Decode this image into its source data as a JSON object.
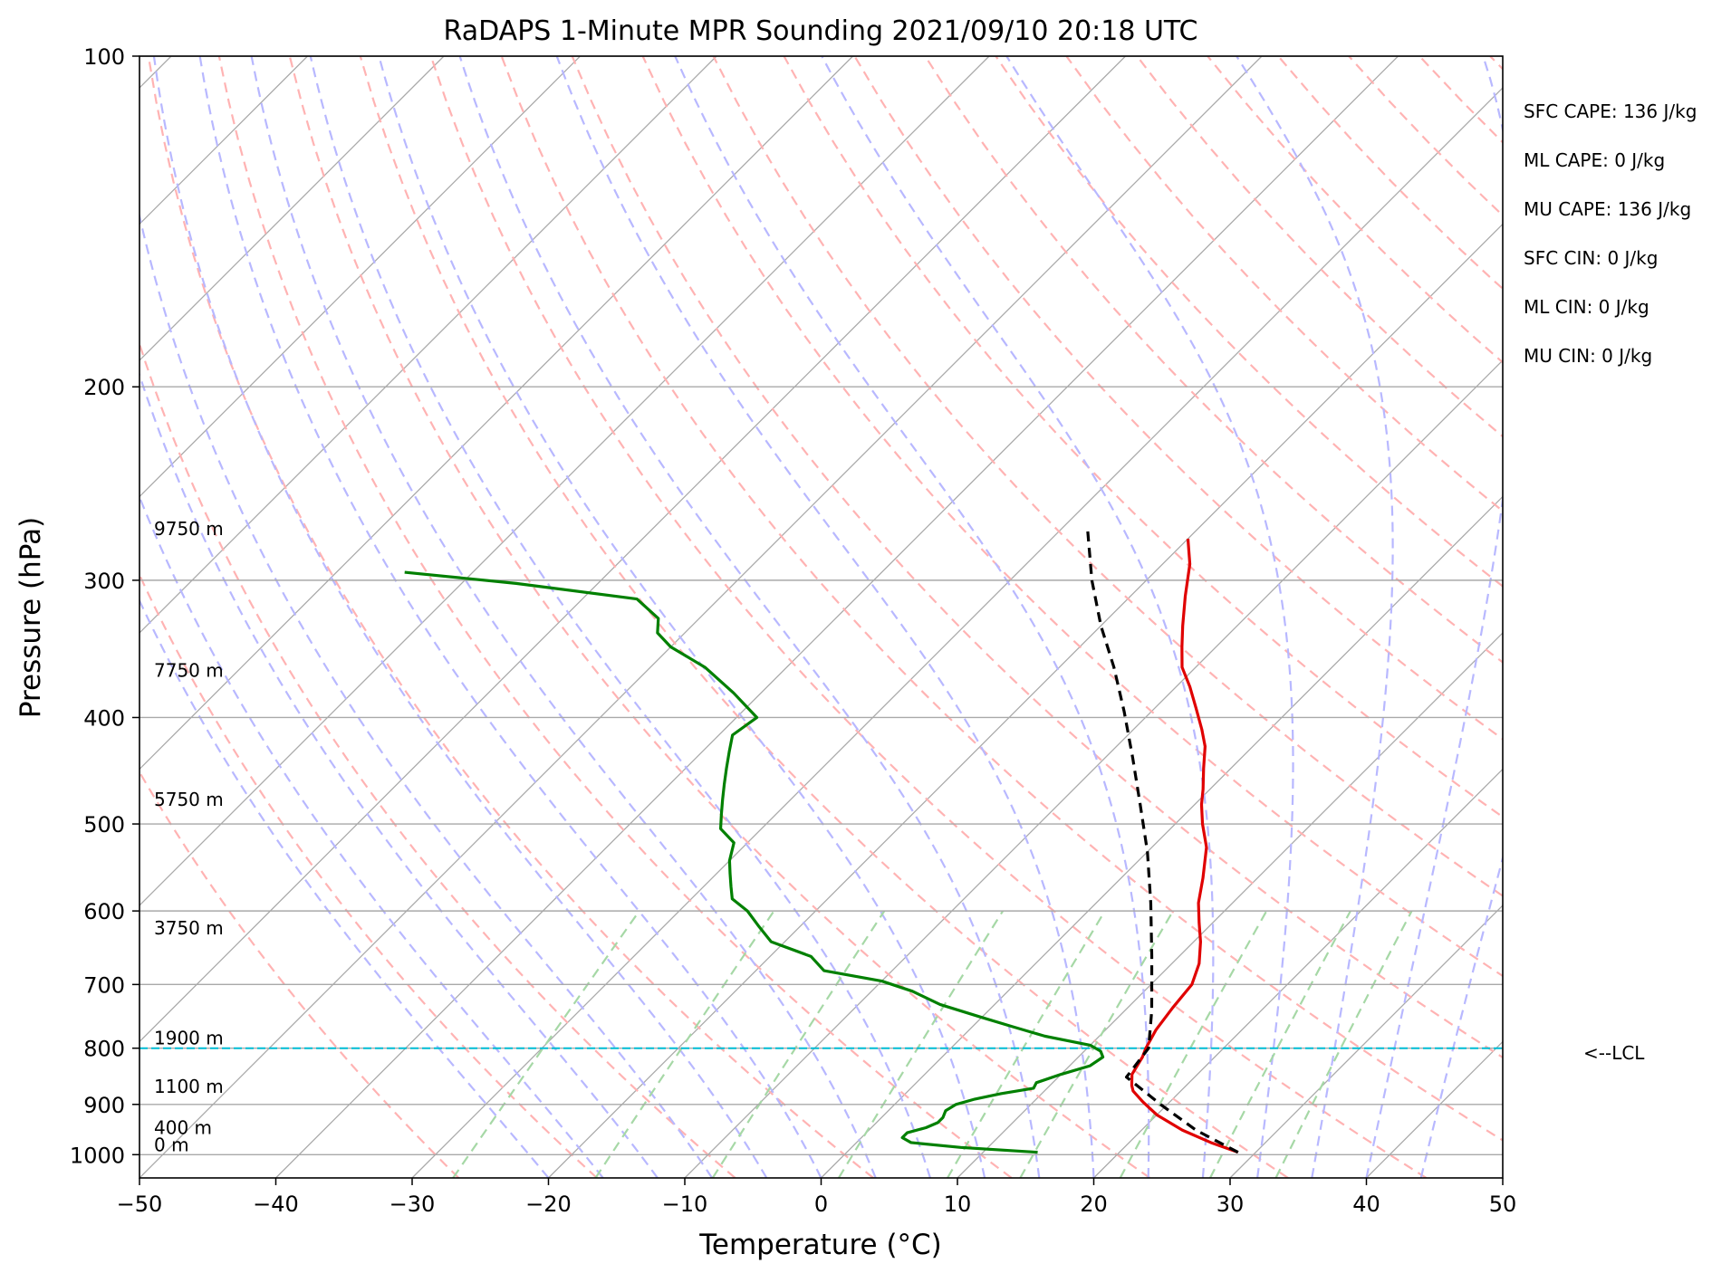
{
  "chart_data": {
    "type": "skew-t",
    "title": "RaDAPS 1-Minute MPR Sounding 2021/09/10 20:18 UTC",
    "xlabel": "Temperature (°C)",
    "ylabel": "Pressure (hPa)",
    "xlim": [
      -50,
      50
    ],
    "ylim": [
      1050,
      100
    ],
    "y_scale": "log",
    "x_ticks": [
      -50,
      -40,
      -30,
      -20,
      -10,
      0,
      10,
      20,
      30,
      40,
      50
    ],
    "y_ticks": [
      100,
      200,
      300,
      400,
      500,
      600,
      700,
      800,
      900,
      1000
    ],
    "grid": true,
    "background_lines": {
      "isotherms_color": "#a9a9a9",
      "dry_adiabats_color": "#ffb3b3",
      "moist_adiabats_color": "#b8b8ff",
      "mixing_ratio_color": "#a6d8a6"
    },
    "series": [
      {
        "color": "#e00000",
        "points": [
          [
            28.7,
            995
          ],
          [
            26,
            975
          ],
          [
            23,
            950
          ],
          [
            20,
            920
          ],
          [
            18,
            895
          ],
          [
            16.5,
            875
          ],
          [
            16,
            865
          ],
          [
            15.2,
            845
          ],
          [
            14.7,
            815
          ],
          [
            14.3,
            800
          ],
          [
            13.7,
            770
          ],
          [
            13.3,
            735
          ],
          [
            13,
            700
          ],
          [
            12,
            670
          ],
          [
            10.5,
            640
          ],
          [
            9,
            615
          ],
          [
            7.5,
            590
          ],
          [
            6,
            560
          ],
          [
            4,
            525
          ],
          [
            2,
            500
          ],
          [
            0.5,
            480
          ],
          [
            -0.5,
            465
          ],
          [
            -2,
            445
          ],
          [
            -3.5,
            425
          ],
          [
            -5,
            410
          ],
          [
            -7,
            392
          ],
          [
            -9,
            375
          ],
          [
            -11,
            360
          ],
          [
            -12.5,
            345
          ],
          [
            -14,
            330
          ],
          [
            -16,
            310
          ],
          [
            -18,
            290
          ],
          [
            -20,
            275
          ]
        ]
      },
      {
        "color": "#008000",
        "points": [
          [
            14,
            995
          ],
          [
            8,
            985
          ],
          [
            4,
            975
          ],
          [
            3,
            965
          ],
          [
            3,
            955
          ],
          [
            4,
            945
          ],
          [
            4.5,
            935
          ],
          [
            4.5,
            925
          ],
          [
            4.2,
            912
          ],
          [
            4.5,
            900
          ],
          [
            5.5,
            890
          ],
          [
            7,
            880
          ],
          [
            9,
            870
          ],
          [
            8.8,
            860
          ],
          [
            10,
            845
          ],
          [
            11.5,
            830
          ],
          [
            11.8,
            815
          ],
          [
            11.2,
            805
          ],
          [
            10,
            795
          ],
          [
            6,
            780
          ],
          [
            3,
            765
          ],
          [
            0,
            750
          ],
          [
            -4,
            730
          ],
          [
            -7,
            710
          ],
          [
            -10,
            695
          ],
          [
            -15,
            680
          ],
          [
            -17,
            660
          ],
          [
            -21,
            640
          ],
          [
            -23,
            620
          ],
          [
            -25,
            600
          ],
          [
            -27,
            585
          ],
          [
            -28,
            570
          ],
          [
            -29,
            555
          ],
          [
            -30,
            540
          ],
          [
            -31,
            520
          ],
          [
            -33,
            505
          ],
          [
            -34,
            490
          ],
          [
            -35,
            475
          ],
          [
            -36,
            460
          ],
          [
            -37,
            445
          ],
          [
            -38,
            430
          ],
          [
            -39,
            415
          ],
          [
            -38.5,
            400
          ],
          [
            -42,
            380
          ],
          [
            -46,
            360
          ],
          [
            -50,
            345
          ],
          [
            -52,
            335
          ],
          [
            -53,
            325
          ],
          [
            -56,
            312
          ],
          [
            -66,
            302
          ],
          [
            -75,
            295
          ]
        ]
      },
      {
        "color": "#000000",
        "dashed": true,
        "points": [
          [
            28.7,
            995
          ],
          [
            24,
            950
          ],
          [
            19.5,
            900
          ],
          [
            15,
            850
          ],
          [
            14.5,
            800
          ],
          [
            12,
            740
          ],
          [
            8,
            660
          ],
          [
            4,
            590
          ],
          [
            0,
            530
          ],
          [
            -4,
            480
          ],
          [
            -8,
            435
          ],
          [
            -12,
            395
          ],
          [
            -16,
            360
          ],
          [
            -20,
            330
          ],
          [
            -24,
            300
          ],
          [
            -28,
            270
          ]
        ]
      }
    ],
    "lcl_pressure": 800,
    "lcl_label": "<--LCL",
    "height_labels": [
      {
        "text": "9750 m",
        "pressure": 275
      },
      {
        "text": "7750 m",
        "pressure": 370
      },
      {
        "text": "5750 m",
        "pressure": 485
      },
      {
        "text": "3750 m",
        "pressure": 635
      },
      {
        "text": "1900 m",
        "pressure": 800
      },
      {
        "text": "1100 m",
        "pressure": 885
      },
      {
        "text": "400 m",
        "pressure": 965
      },
      {
        "text": "0 m",
        "pressure": 1000
      }
    ],
    "annotations": [
      "SFC CAPE: 136 J/kg",
      "ML CAPE: 0 J/kg",
      "MU CAPE: 136 J/kg",
      "SFC CIN: 0 J/kg",
      "ML CIN: 0 J/kg",
      "MU CIN: 0 J/kg"
    ]
  }
}
